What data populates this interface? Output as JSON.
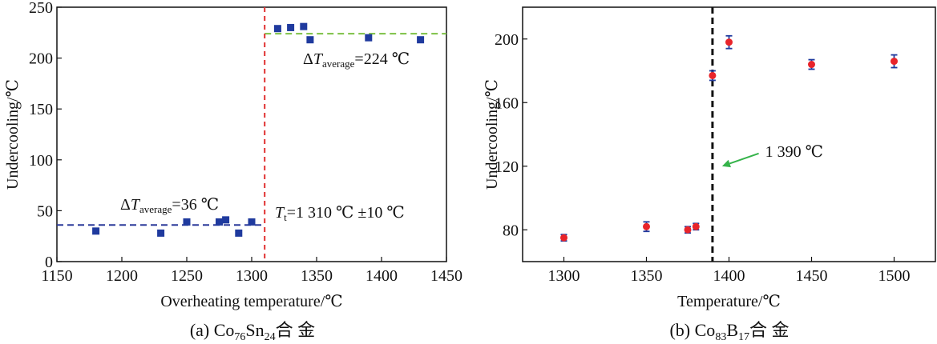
{
  "chart_data": [
    {
      "type": "scatter",
      "panel": "a",
      "caption": {
        "prefix": "(a) Co",
        "sub1": "76",
        "mid": "Sn",
        "sub2": "24",
        "suffix": "合 金"
      },
      "xlabel": "Overheating temperature/℃",
      "ylabel": "Undercooling/℃",
      "xlim": [
        1150,
        1450
      ],
      "ylim": [
        0,
        250
      ],
      "xticks": [
        1150,
        1200,
        1250,
        1300,
        1350,
        1400,
        1450
      ],
      "yticks": [
        0,
        50,
        100,
        150,
        200,
        250
      ],
      "points": [
        {
          "x": 1180,
          "y": 30
        },
        {
          "x": 1230,
          "y": 28
        },
        {
          "x": 1250,
          "y": 39
        },
        {
          "x": 1275,
          "y": 39
        },
        {
          "x": 1280,
          "y": 41
        },
        {
          "x": 1290,
          "y": 28
        },
        {
          "x": 1300,
          "y": 39
        },
        {
          "x": 1320,
          "y": 229
        },
        {
          "x": 1330,
          "y": 230
        },
        {
          "x": 1340,
          "y": 231
        },
        {
          "x": 1345,
          "y": 218
        },
        {
          "x": 1390,
          "y": 220
        },
        {
          "x": 1430,
          "y": 218
        }
      ],
      "vline": {
        "x": 1310,
        "color": "#e03030"
      },
      "avg_low": {
        "x": [
          1150,
          1310
        ],
        "y": 36,
        "color": "#2b3a9a"
      },
      "avg_high": {
        "x": [
          1310,
          1450
        ],
        "y": 224,
        "color": "#7cc043"
      },
      "marker_color": "#1f3a9e",
      "annotations": {
        "low": {
          "delta": "Δ",
          "T": "T",
          "sub": "average",
          "value": "=36 ℃"
        },
        "high": {
          "delta": "Δ",
          "T": "T",
          "sub": "average",
          "value": "=224 ℃"
        },
        "tt": {
          "T": "T",
          "sub": "t",
          "value": "=1 310 ℃ ±10 ℃"
        }
      }
    },
    {
      "type": "scatter",
      "panel": "b",
      "caption": {
        "prefix": "(b) Co",
        "sub1": "83",
        "mid": "B",
        "sub2": "17",
        "suffix": "合 金"
      },
      "xlabel": "Temperature/℃",
      "ylabel": "Undercooling/℃",
      "xlim": [
        1275,
        1525
      ],
      "ylim": [
        60,
        220
      ],
      "xticks": [
        1300,
        1350,
        1400,
        1450,
        1500
      ],
      "yticks": [
        80,
        120,
        160,
        200
      ],
      "points": [
        {
          "x": 1300,
          "y": 75,
          "err": 2
        },
        {
          "x": 1350,
          "y": 82,
          "err": 3
        },
        {
          "x": 1375,
          "y": 80,
          "err": 2
        },
        {
          "x": 1380,
          "y": 82,
          "err": 2
        },
        {
          "x": 1390,
          "y": 177,
          "err": 3
        },
        {
          "x": 1400,
          "y": 198,
          "err": 4
        },
        {
          "x": 1450,
          "y": 184,
          "err": 3
        },
        {
          "x": 1500,
          "y": 186,
          "err": 4
        }
      ],
      "vline": {
        "x": 1390,
        "color": "#111111"
      },
      "marker_color": "#e8242a",
      "errbar_color": "#1f3a9e",
      "arrow": {
        "text": "1 390 ℃",
        "color": "#35b34a",
        "target": {
          "x": 1390,
          "y": 120
        },
        "from": {
          "x": 1418,
          "y": 128
        }
      }
    }
  ]
}
